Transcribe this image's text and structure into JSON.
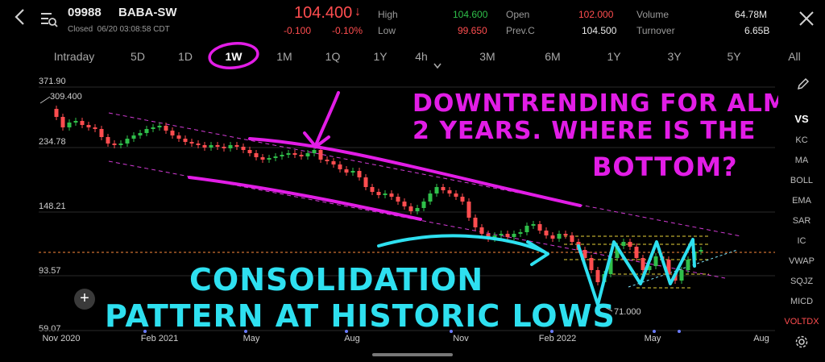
{
  "header": {
    "code": "09988",
    "name": "BABA-SW",
    "status": "Closed  06/20 03:08:58 CDT",
    "price": "104.400",
    "price_arrow": "↓",
    "change": "-0.100",
    "change_pct": "-0.10%",
    "high_label": "High",
    "high_value": "104.600",
    "low_label": "Low",
    "low_value": "99.650",
    "open_label": "Open",
    "open_value": "102.000",
    "prevc_label": "Prev.C",
    "prevc_value": "104.500",
    "volume_label": "Volume",
    "volume_value": "64.78M",
    "turnover_label": "Turnover",
    "turnover_value": "6.65B",
    "close_icon": "close-icon"
  },
  "tabs": [
    {
      "label": "Intraday"
    },
    {
      "label": "5D"
    },
    {
      "label": "1D"
    },
    {
      "label": "1W",
      "active": true
    },
    {
      "label": "1M"
    },
    {
      "label": "1Q"
    },
    {
      "label": "1Y"
    },
    {
      "label": "4h"
    },
    {
      "label": "3M"
    },
    {
      "label": "6M"
    },
    {
      "label": "1Y"
    },
    {
      "label": "3Y"
    },
    {
      "label": "5Y"
    },
    {
      "label": "All"
    }
  ],
  "sidebar": {
    "items": [
      {
        "label": "VS",
        "active": true
      },
      {
        "label": "KC"
      },
      {
        "label": "MA"
      },
      {
        "label": "BOLL"
      },
      {
        "label": "EMA"
      },
      {
        "label": "SAR"
      },
      {
        "label": "IC"
      },
      {
        "label": "VWAP"
      },
      {
        "label": "SQJZ"
      },
      {
        "label": "MICD"
      },
      {
        "label": "VOLTDX",
        "highlight": true
      }
    ]
  },
  "chart_data": {
    "type": "candlestick",
    "y_axis_labels": [
      "371.90",
      "234.78",
      "148.21",
      "93.57",
      "59.07"
    ],
    "x_axis_labels": [
      "Nov 2020",
      "Feb 2021",
      "May",
      "Aug",
      "Nov",
      "Feb 2022",
      "May",
      "Aug"
    ],
    "high_marker": "309.400",
    "low_marker": "71.000",
    "ylim": [
      59.07,
      371.9
    ],
    "log_scale": true
  },
  "annotations": {
    "top_line1": "DOWNTRENDING FOR ALMOST",
    "top_line2": "2 YEARS. WHERE IS THE",
    "top_line3": "BOTTOM?",
    "bottom_line1": "CONSOLIDATION",
    "bottom_line2": "PATTERN AT HISTORIC LOWS"
  },
  "colors": {
    "up": "#2fbf4a",
    "down": "#ff4d4f",
    "pen_magenta": "#e21de6",
    "pen_cyan": "#2ee0f0"
  }
}
